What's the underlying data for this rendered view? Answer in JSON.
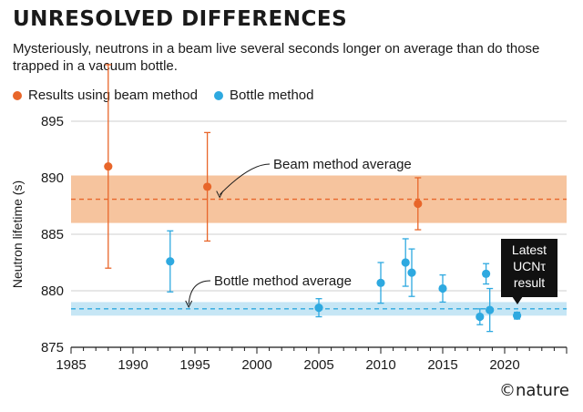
{
  "title": "UNRESOLVED DIFFERENCES",
  "subtitle": "Mysteriously, neutrons in a beam live several seconds longer on average than do those trapped in a vacuum bottle.",
  "credit": "©nature",
  "callout": [
    "Latest",
    "UCNτ",
    "result"
  ],
  "colors": {
    "beam": "#e8662a",
    "beam_band": "#f6c49e",
    "bottle": "#2ea9e0",
    "bottle_band": "#c6e6f5",
    "axis": "#1a1a1a",
    "grid": "#cfcfcf"
  },
  "chart_data": {
    "type": "scatter",
    "xlabel": "",
    "ylabel": "Neutron lifetime (s)",
    "xlim": [
      1985,
      2025
    ],
    "ylim": [
      875,
      895
    ],
    "xticks": [
      1985,
      1990,
      1995,
      2000,
      2005,
      2010,
      2015,
      2020
    ],
    "yticks": [
      875,
      880,
      885,
      890,
      895
    ],
    "grid": "horizontal",
    "legend_position": "top-left",
    "series": [
      {
        "name": "Results using beam method",
        "color": "#e8662a",
        "points": [
          {
            "x": 1988,
            "y": 891.0,
            "err": 9.0
          },
          {
            "x": 1996,
            "y": 889.2,
            "err": 4.8
          },
          {
            "x": 2013,
            "y": 887.7,
            "err": 2.3
          }
        ],
        "average": 888.1,
        "band": [
          886.0,
          890.2
        ],
        "average_label": "Beam method average"
      },
      {
        "name": "Bottle method",
        "color": "#2ea9e0",
        "points": [
          {
            "x": 1993,
            "y": 882.6,
            "err": 2.7
          },
          {
            "x": 2005,
            "y": 878.5,
            "err": 0.8
          },
          {
            "x": 2010,
            "y": 880.7,
            "err": 1.8
          },
          {
            "x": 2012,
            "y": 882.5,
            "err": 2.1
          },
          {
            "x": 2012.5,
            "y": 881.6,
            "err": 2.1
          },
          {
            "x": 2015,
            "y": 880.2,
            "err": 1.2
          },
          {
            "x": 2018,
            "y": 877.7,
            "err": 0.7
          },
          {
            "x": 2018.5,
            "y": 881.5,
            "err": 0.9
          },
          {
            "x": 2018.8,
            "y": 878.3,
            "err": 1.9
          },
          {
            "x": 2021,
            "y": 877.8,
            "err": 0.3
          }
        ],
        "average": 878.4,
        "band": [
          877.8,
          879.0
        ],
        "average_label": "Bottle method average"
      }
    ]
  }
}
